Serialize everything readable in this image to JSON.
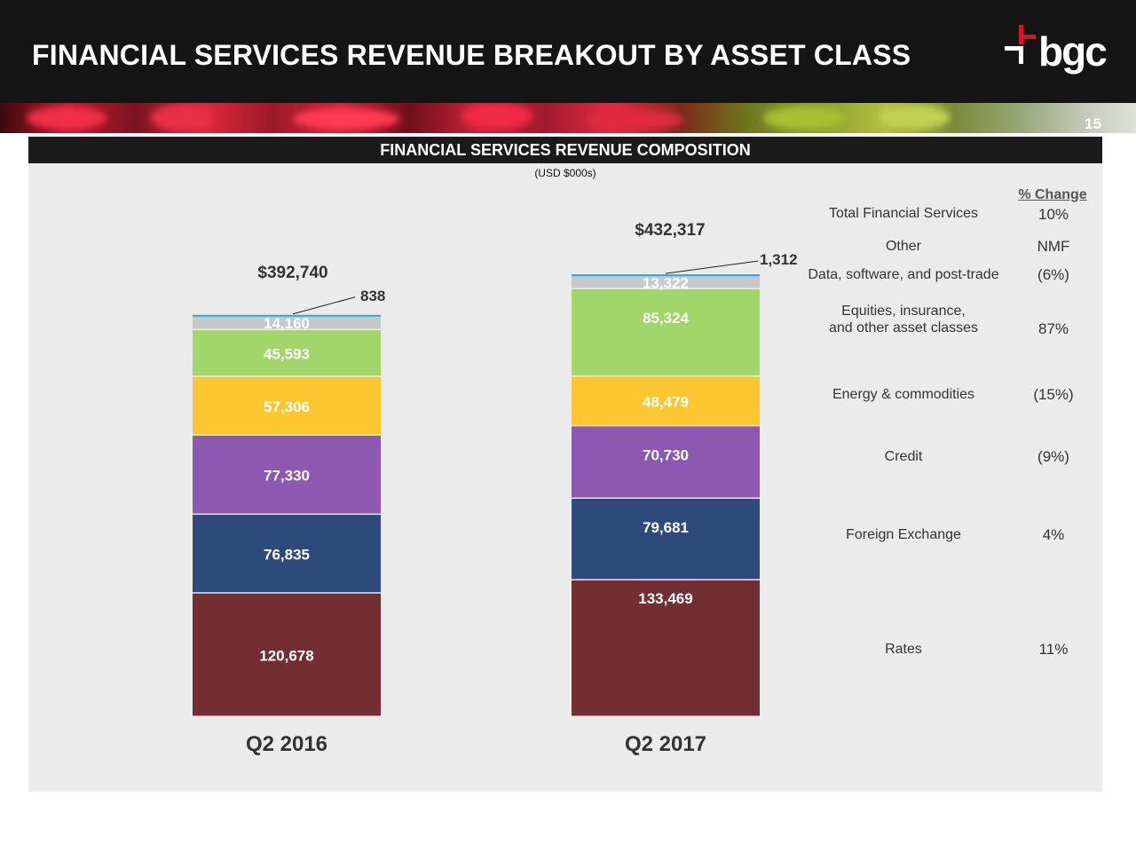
{
  "header": {
    "title": "FINANCIAL SERVICES REVENUE BREAKOUT BY ASSET CLASS",
    "logo_text": "bgc",
    "page_number": "15"
  },
  "panel": {
    "title": "FINANCIAL SERVICES REVENUE COMPOSITION",
    "units": "(USD $000s)",
    "change_header": "% Change"
  },
  "colors": {
    "rates": "#732e33",
    "fx": "#2e4a7b",
    "credit": "#8c58b2",
    "energy": "#fcc630",
    "equities": "#a2d56a",
    "data": "#c8c8c8",
    "other": "#29a9e1"
  },
  "chart_data": {
    "type": "bar",
    "stacked": true,
    "title": "FINANCIAL SERVICES REVENUE COMPOSITION",
    "units": "(USD $000s)",
    "categories": [
      "Q2 2016",
      "Q2 2017"
    ],
    "totals": [
      "$392,740",
      "$432,317"
    ],
    "series": [
      {
        "name": "Rates",
        "key": "rates",
        "values": [
          120678,
          133469
        ],
        "labels": [
          "120,678",
          "133,469"
        ],
        "change": "11%"
      },
      {
        "name": "Foreign Exchange",
        "key": "fx",
        "values": [
          76835,
          79681
        ],
        "labels": [
          "76,835",
          "79,681"
        ],
        "change": "4%"
      },
      {
        "name": "Credit",
        "key": "credit",
        "values": [
          77330,
          70730
        ],
        "labels": [
          "77,330",
          "70,730"
        ],
        "change": "(9%)"
      },
      {
        "name": "Energy & commodities",
        "key": "energy",
        "values": [
          57306,
          48479
        ],
        "labels": [
          "57,306",
          "48,479"
        ],
        "change": "(15%)"
      },
      {
        "name": "Equities, insurance, and other asset classes",
        "key": "equities",
        "values": [
          45593,
          85324
        ],
        "labels": [
          "45,593",
          "85,324"
        ],
        "change": "87%"
      },
      {
        "name": "Data, software, and post-trade",
        "key": "data",
        "values": [
          14160,
          13322
        ],
        "labels": [
          "14,160",
          "13,322"
        ],
        "change": "(6%)"
      },
      {
        "name": "Other",
        "key": "other",
        "values": [
          838,
          1312
        ],
        "labels": [
          "838",
          "1,312"
        ],
        "change": "NMF"
      }
    ],
    "total_row": {
      "name": "Total Financial Services",
      "change": "10%"
    }
  }
}
